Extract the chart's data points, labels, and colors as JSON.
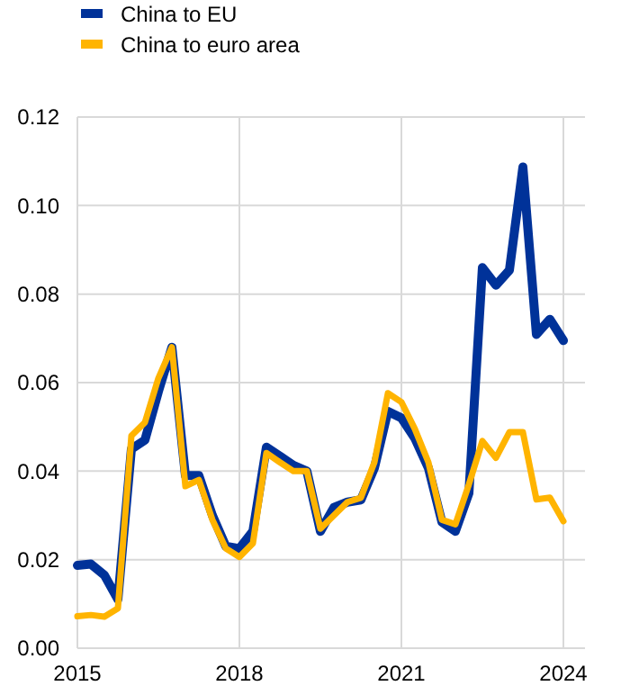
{
  "chart_data": {
    "type": "line",
    "x": [
      2015,
      2015.25,
      2015.5,
      2015.75,
      2016,
      2016.25,
      2016.5,
      2016.75,
      2017,
      2017.25,
      2017.5,
      2017.75,
      2018,
      2018.25,
      2018.5,
      2018.75,
      2019,
      2019.25,
      2019.5,
      2019.75,
      2020,
      2020.25,
      2020.5,
      2020.75,
      2021,
      2021.25,
      2021.5,
      2021.75,
      2022,
      2022.25,
      2022.5,
      2022.75,
      2023,
      2023.25,
      2023.5,
      2023.75,
      2024
    ],
    "series": [
      {
        "name": "China to EU",
        "color": "#003299",
        "values": [
          0.0187,
          0.019,
          0.0165,
          0.011,
          0.045,
          0.047,
          0.058,
          0.068,
          0.039,
          0.039,
          0.03,
          0.023,
          0.0225,
          0.0264,
          0.0454,
          0.0434,
          0.0413,
          0.04,
          0.0264,
          0.0318,
          0.033,
          0.0335,
          0.0407,
          0.0535,
          0.052,
          0.0474,
          0.0407,
          0.0285,
          0.0264,
          0.035,
          0.086,
          0.082,
          0.0854,
          0.1087,
          0.0709,
          0.0743,
          0.0695
        ]
      },
      {
        "name": "China to euro area",
        "color": "#ffb400",
        "values": [
          0.0072,
          0.0075,
          0.0071,
          0.009,
          0.048,
          0.051,
          0.061,
          0.068,
          0.0366,
          0.038,
          0.029,
          0.0225,
          0.0206,
          0.0237,
          0.0441,
          0.042,
          0.04,
          0.04,
          0.027,
          0.03,
          0.033,
          0.034,
          0.042,
          0.0576,
          0.0556,
          0.0495,
          0.042,
          0.029,
          0.028,
          0.037,
          0.0468,
          0.043,
          0.0488,
          0.0488,
          0.0336,
          0.034,
          0.0287
        ]
      }
    ],
    "xlim": [
      2015,
      2024.4
    ],
    "xticks": [
      2015,
      2018,
      2021,
      2024
    ],
    "ylim": [
      0,
      0.12
    ],
    "yticks": [
      {
        "value": 0,
        "label": "0.00"
      },
      {
        "value": 0.02,
        "label": "0.02"
      },
      {
        "value": 0.04,
        "label": "0.04"
      },
      {
        "value": 0.06,
        "label": "0.06"
      },
      {
        "value": 0.08,
        "label": "0.08"
      },
      {
        "value": 0.1,
        "label": "0.10"
      },
      {
        "value": 0.12,
        "label": "0.12"
      }
    ],
    "grid": true,
    "legend": "top left",
    "marker": "none",
    "line_style": "solid"
  }
}
